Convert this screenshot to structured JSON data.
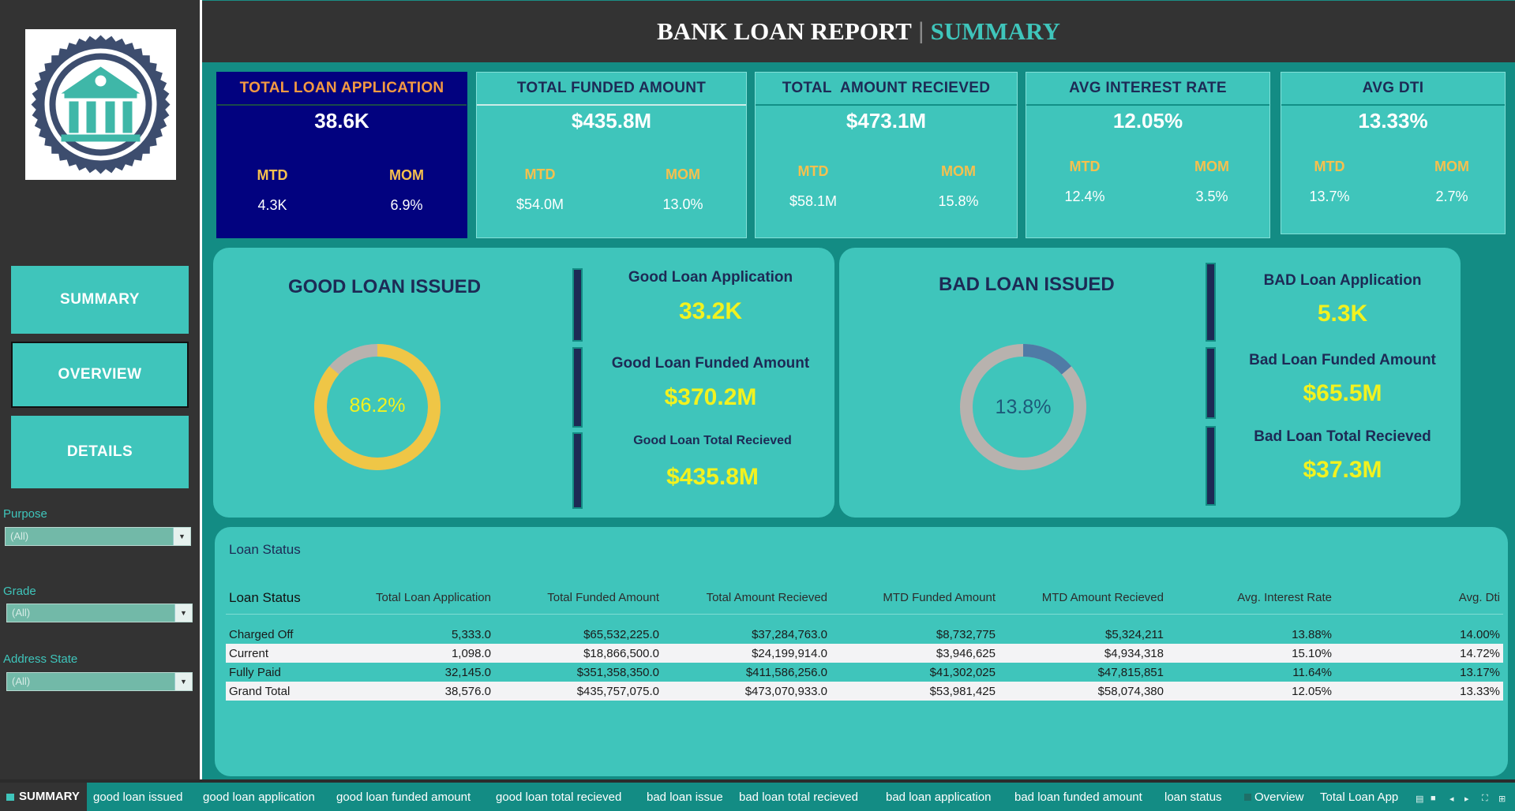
{
  "header": {
    "title": "BANK LOAN REPORT",
    "separator": "|",
    "subtitle": "SUMMARY"
  },
  "logo": {
    "icon": "bank-building-seal-icon"
  },
  "sidebar": {
    "nav": [
      {
        "label": "SUMMARY"
      },
      {
        "label": "OVERVIEW"
      },
      {
        "label": "DETAILS"
      }
    ],
    "filters": [
      {
        "label": "Purpose",
        "value": "(All)"
      },
      {
        "label": "Grade",
        "value": "(All)"
      },
      {
        "label": "Address State",
        "value": "(All)"
      }
    ]
  },
  "kpis": [
    {
      "title": "TOTAL LOAN APPLICATION",
      "value": "38.6K",
      "mtd_label": "MTD",
      "mtd": "4.3K",
      "mom_label": "MOM",
      "mom": "6.9%"
    },
    {
      "title": "TOTAL FUNDED AMOUNT",
      "value": "$435.8M",
      "mtd_label": "MTD",
      "mtd": "$54.0M",
      "mom_label": "MOM",
      "mom": "13.0%"
    },
    {
      "title": "TOTAL  AMOUNT RECIEVED",
      "value": "$473.1M",
      "mtd_label": "MTD",
      "mtd": "$58.1M",
      "mom_label": "MOM",
      "mom": "15.8%"
    },
    {
      "title": "AVG INTEREST RATE",
      "value": "12.05%",
      "mtd_label": "MTD",
      "mtd": "12.4%",
      "mom_label": "MOM",
      "mom": "3.5%"
    },
    {
      "title": "AVG DTI",
      "value": "13.33%",
      "mtd_label": "MTD",
      "mtd": "13.7%",
      "mom_label": "MOM",
      "mom": "2.7%"
    }
  ],
  "good_loan": {
    "title": "GOOD LOAN ISSUED",
    "percent_label": "86.2%",
    "percent": 86.2,
    "colors": {
      "main": "#efc646",
      "rest": "#b8b2ae"
    },
    "metrics": [
      {
        "label": "Good Loan Application",
        "value": "33.2K"
      },
      {
        "label": "Good Loan Funded Amount",
        "value": "$370.2M"
      },
      {
        "label": "Good Loan Total Recieved",
        "value": "$435.8M"
      }
    ]
  },
  "bad_loan": {
    "title": "BAD LOAN ISSUED",
    "percent_label": "13.8%",
    "percent": 13.8,
    "colors": {
      "main": "#4f7ba6",
      "rest": "#b8b2ae"
    },
    "metrics": [
      {
        "label": "BAD Loan Application",
        "value": "5.3K"
      },
      {
        "label": "Bad Loan Funded Amount",
        "value": "$65.5M"
      },
      {
        "label": "Bad Loan Total Recieved",
        "value": "$37.3M"
      }
    ]
  },
  "loan_status": {
    "heading": "Loan Status",
    "columns": [
      "Loan Status",
      "Total Loan Application",
      "Total Funded Amount",
      "Total Amount Recieved",
      "MTD Funded Amount",
      "MTD Amount Recieved",
      "Avg. Interest Rate",
      "Avg. Dti"
    ],
    "rows": [
      [
        "Charged Off",
        "5,333.0",
        "$65,532,225.0",
        "$37,284,763.0",
        "$8,732,775",
        "$5,324,211",
        "13.88%",
        "14.00%"
      ],
      [
        "Current",
        "1,098.0",
        "$18,866,500.0",
        "$24,199,914.0",
        "$3,946,625",
        "$4,934,318",
        "15.10%",
        "14.72%"
      ],
      [
        "Fully Paid",
        "32,145.0",
        "$351,358,350.0",
        "$411,586,256.0",
        "$41,302,025",
        "$47,815,851",
        "11.64%",
        "13.17%"
      ],
      [
        "Grand Total",
        "38,576.0",
        "$435,757,075.0",
        "$473,070,933.0",
        "$53,981,425",
        "$58,074,380",
        "12.05%",
        "13.33%"
      ]
    ]
  },
  "tabs": [
    "SUMMARY",
    "good loan issued",
    "good loan application",
    "good loan funded amount",
    "good loan total recieved",
    "bad loan issue",
    "bad loan total recieved",
    "bad loan application",
    "bad loan funded amount",
    "loan status",
    "Overview",
    "Total Loan App"
  ],
  "colors": {
    "accent": "#3fc5bb",
    "background_teal": "#138c84",
    "dark": "#333333",
    "navy": "#02027f",
    "highlight_yellow": "#f2f21f",
    "label_gold": "#f6c04e"
  }
}
